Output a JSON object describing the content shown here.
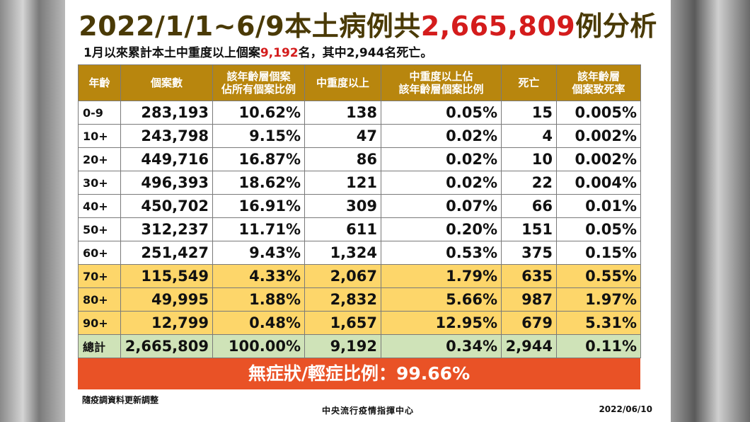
{
  "title": {
    "prefix": "2022/1/1~6/9本土病例共",
    "highlight": "2,665,809",
    "suffix": "例分析"
  },
  "subtitle": {
    "prefix": "1月以來累計本土中重度以上個案",
    "highlight": "9,192",
    "suffix": "名，其中2,944名死亡。"
  },
  "colors": {
    "header_bg": "#b8860e",
    "highlight_row": "#fdd66a",
    "total_row": "#cfe3b8",
    "banner_bg": "#e95226",
    "accent_red": "#d41c1c",
    "title_brown": "#4a3a06"
  },
  "table": {
    "headers": [
      "年齡",
      "個案數",
      "該年齡層個案\n佔所有個案比例",
      "中重度以上",
      "中重度以上佔\n該年齡層個案比例",
      "死亡",
      "該年齡層\n個案致死率"
    ],
    "rows": [
      [
        "0-9",
        "283,193",
        "10.62%",
        "138",
        "0.05%",
        "15",
        "0.005%"
      ],
      [
        "10+",
        "243,798",
        "9.15%",
        "47",
        "0.02%",
        "4",
        "0.002%"
      ],
      [
        "20+",
        "449,716",
        "16.87%",
        "86",
        "0.02%",
        "10",
        "0.002%"
      ],
      [
        "30+",
        "496,393",
        "18.62%",
        "121",
        "0.02%",
        "22",
        "0.004%"
      ],
      [
        "40+",
        "450,702",
        "16.91%",
        "309",
        "0.07%",
        "66",
        "0.01%"
      ],
      [
        "50+",
        "312,237",
        "11.71%",
        "611",
        "0.20%",
        "151",
        "0.05%"
      ],
      [
        "60+",
        "251,427",
        "9.43%",
        "1,324",
        "0.53%",
        "375",
        "0.15%"
      ],
      [
        "70+",
        "115,549",
        "4.33%",
        "2,067",
        "1.79%",
        "635",
        "0.55%"
      ],
      [
        "80+",
        "49,995",
        "1.88%",
        "2,832",
        "5.66%",
        "987",
        "1.97%"
      ],
      [
        "90+",
        "12,799",
        "0.48%",
        "1,657",
        "12.95%",
        "679",
        "5.31%"
      ]
    ],
    "highlight_row_indices": [
      7,
      8,
      9
    ],
    "total": [
      "總計",
      "2,665,809",
      "100.00%",
      "9,192",
      "0.34%",
      "2,944",
      "0.11%"
    ]
  },
  "banner": "無症狀/輕症比例：99.66%",
  "footer": {
    "note": "隨疫調資料更新調整",
    "org": "中央流行疫情指揮中心",
    "date": "2022/06/10"
  }
}
